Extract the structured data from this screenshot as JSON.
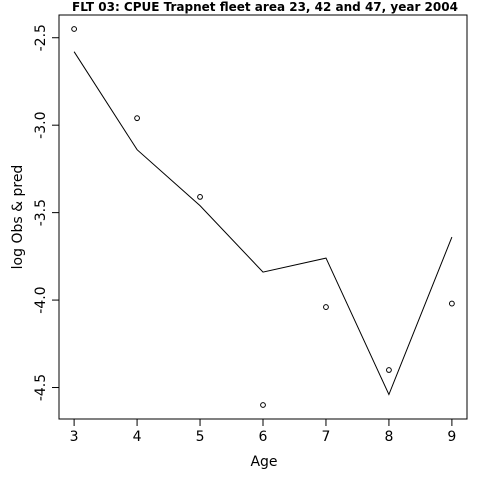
{
  "chart_data": {
    "type": "line",
    "title": "FLT 03: CPUE Trapnet fleet area 23, 42 and 47, year 2004",
    "xlabel": "Age",
    "ylabel": "log Obs & pred",
    "xlim": [
      2.76,
      9.24
    ],
    "ylim": [
      -4.68,
      -2.37
    ],
    "xticks": [
      3,
      4,
      5,
      6,
      7,
      8,
      9
    ],
    "xtick_labels": [
      "3",
      "4",
      "5",
      "6",
      "7",
      "8",
      "9"
    ],
    "yticks": [
      -2.5,
      -3.0,
      -3.5,
      -4.0,
      -4.5
    ],
    "ytick_labels": [
      "-2.5",
      "-3.0",
      "-3.5",
      "-4.0",
      "-4.5"
    ],
    "grid": false,
    "series": [
      {
        "style": "points",
        "x": [
          3,
          4,
          5,
          6,
          7,
          8,
          9
        ],
        "y": [
          -2.45,
          -2.96,
          -3.41,
          -4.6,
          -4.04,
          -4.4,
          -4.02
        ]
      },
      {
        "style": "line",
        "x": [
          3,
          4,
          5,
          6,
          7,
          8,
          9
        ],
        "y": [
          -2.58,
          -3.14,
          -3.46,
          -3.84,
          -3.76,
          -4.54,
          -3.64
        ]
      }
    ]
  }
}
